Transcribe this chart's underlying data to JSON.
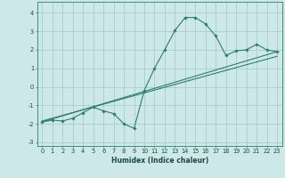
{
  "xlabel": "Humidex (Indice chaleur)",
  "bg_color": "#cce8e8",
  "grid_color": "#aacccc",
  "line_color": "#2e7d6e",
  "xlim": [
    -0.5,
    23.5
  ],
  "ylim": [
    -3.2,
    4.6
  ],
  "xticks": [
    0,
    1,
    2,
    3,
    4,
    5,
    6,
    7,
    8,
    9,
    10,
    11,
    12,
    13,
    14,
    15,
    16,
    17,
    18,
    19,
    20,
    21,
    22,
    23
  ],
  "yticks": [
    -3,
    -2,
    -1,
    0,
    1,
    2,
    3,
    4
  ],
  "curve_x": [
    0,
    1,
    2,
    3,
    4,
    5,
    6,
    7,
    8,
    9,
    10,
    11,
    12,
    13,
    14,
    15,
    16,
    17,
    18,
    19,
    20,
    21,
    22,
    23
  ],
  "curve_y": [
    -1.9,
    -1.8,
    -1.85,
    -1.7,
    -1.4,
    -1.1,
    -1.3,
    -1.45,
    -2.0,
    -2.25,
    -0.2,
    1.0,
    2.0,
    3.05,
    3.75,
    3.75,
    3.4,
    2.75,
    1.7,
    1.95,
    2.0,
    2.3,
    2.0,
    1.9
  ],
  "line1_x": [
    0,
    23
  ],
  "line1_y": [
    -1.9,
    1.9
  ],
  "line2_x": [
    0,
    23
  ],
  "line2_y": [
    -1.85,
    1.65
  ],
  "xlabel_fontsize": 5.5,
  "tick_fontsize": 4.8,
  "linewidth": 0.8,
  "markersize": 1.8
}
